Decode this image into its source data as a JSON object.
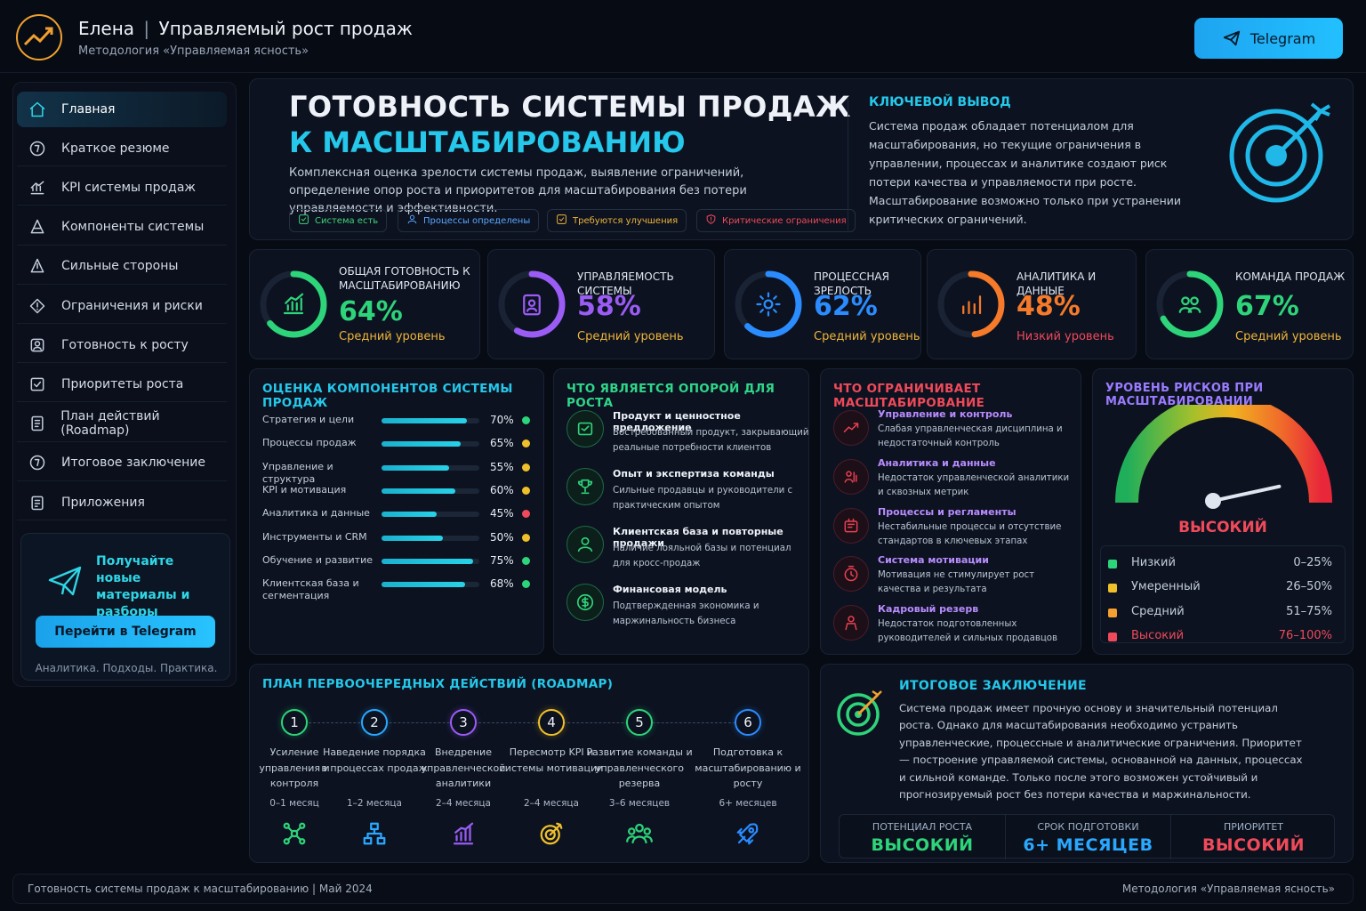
{
  "header": {
    "name": "Елена",
    "separator": "|",
    "title": "Управляемый рост продаж",
    "subtitle": "Методология «Управляемая ясность»",
    "telegram_label": "Telegram"
  },
  "sidebar": {
    "items": [
      {
        "label": "Главная",
        "icon": "home-icon"
      },
      {
        "label": "Краткое резюме",
        "icon": "summary-icon"
      },
      {
        "label": "KPI системы продаж",
        "icon": "kpi-icon"
      },
      {
        "label": "Компоненты системы",
        "icon": "components-icon"
      },
      {
        "label": "Сильные стороны",
        "icon": "strengths-icon"
      },
      {
        "label": "Ограничения и риски",
        "icon": "risks-icon"
      },
      {
        "label": "Готовность к росту",
        "icon": "growth-icon"
      },
      {
        "label": "Приоритеты роста",
        "icon": "priorities-icon"
      },
      {
        "label": "План действий (Roadmap)",
        "icon": "roadmap-icon"
      },
      {
        "label": "Итоговое заключение",
        "icon": "conclusion-icon"
      },
      {
        "label": "Приложения",
        "icon": "appendix-icon"
      }
    ],
    "promo": {
      "text": "Получайте новые материалы и разборы",
      "button": "Перейти в Telegram",
      "footer": "Аналитика. Подходы. Практика."
    }
  },
  "hero": {
    "title_line1": "ГОТОВНОСТЬ СИСТЕМЫ ПРОДАЖ",
    "title_line2": "К МАСШТАБИРОВАНИЮ",
    "description": "Комплексная оценка зрелости системы продаж, выявление ограничений, определение опор роста и приоритетов для масштабирования без потери управляемости и эффективности.",
    "pills": [
      {
        "label": "Система есть",
        "color": "#3fd47a"
      },
      {
        "label": "Процессы определены",
        "color": "#5aa8ff"
      },
      {
        "label": "Требуются улучшения",
        "color": "#f0b63a"
      },
      {
        "label": "Критические ограничения",
        "color": "#f04a5a"
      }
    ],
    "key_heading": "КЛЮЧЕВОЙ ВЫВОД",
    "key_text": "Система продаж обладает потенциалом для масштабирования, но текущие ограничения в управлении, процессах и аналитике создают риск потери качества и управляемости при росте. Масштабирование возможно только при устранении критических ограничений."
  },
  "kpis": [
    {
      "title": "ОБЩАЯ ГОТОВНОСТЬ К МАСШТАБИРОВАНИЮ",
      "value": "64%",
      "percent": 64,
      "level": "Средний уровень",
      "color": "#2ed47a",
      "level_color": "#f0b63a",
      "icon": "bar-chart-icon"
    },
    {
      "title": "УПРАВЛЯЕМОСТЬ СИСТЕМЫ",
      "value": "58%",
      "percent": 58,
      "level": "Средний уровень",
      "color": "#9a5cf5",
      "level_color": "#f0b63a",
      "icon": "clipboard-icon"
    },
    {
      "title": "ПРОЦЕССНАЯ ЗРЕЛОСТЬ",
      "value": "62%",
      "percent": 62,
      "level": "Средний уровень",
      "color": "#2a8cff",
      "level_color": "#f0b63a",
      "icon": "gear-icon"
    },
    {
      "title": "АНАЛИТИКА И ДАННЫЕ",
      "value": "48%",
      "percent": 48,
      "level": "Низкий уровень",
      "color": "#f57a2a",
      "level_color": "#f04a5a",
      "icon": "analytics-icon"
    },
    {
      "title": "КОМАНДА ПРОДАЖ",
      "value": "67%",
      "percent": 67,
      "level": "Средний уровень",
      "color": "#2ed47a",
      "level_color": "#f0b63a",
      "icon": "team-icon"
    }
  ],
  "components": {
    "heading": "ОЦЕНКА КОМПОНЕНТОВ СИСТЕМЫ ПРОДАЖ",
    "rows": [
      {
        "label": "Стратегия и цели",
        "value": "70%",
        "percent": 70,
        "status_color": "#2ed47a"
      },
      {
        "label": "Процессы продаж",
        "value": "65%",
        "percent": 65,
        "status_color": "#f0c02a"
      },
      {
        "label": "Управление и структура",
        "value": "55%",
        "percent": 55,
        "status_color": "#f0c02a"
      },
      {
        "label": "KPI и мотивация",
        "value": "60%",
        "percent": 60,
        "status_color": "#f0c02a"
      },
      {
        "label": "Аналитика и данные",
        "value": "45%",
        "percent": 45,
        "status_color": "#f04a5a"
      },
      {
        "label": "Инструменты и CRM",
        "value": "50%",
        "percent": 50,
        "status_color": "#f0c02a"
      },
      {
        "label": "Обучение и развитие",
        "value": "75%",
        "percent": 75,
        "status_color": "#2ed47a"
      },
      {
        "label": "Клиентская база и сегментация",
        "value": "68%",
        "percent": 68,
        "status_color": "#2ed47a"
      }
    ]
  },
  "supports": {
    "heading": "ЧТО ЯВЛЯЕТСЯ ОПОРОЙ ДЛЯ РОСТА",
    "items": [
      {
        "title": "Продукт и ценностное предложение",
        "text": "Востребованный продукт, закрывающий реальные потребности клиентов",
        "icon": "product-icon"
      },
      {
        "title": "Опыт и экспертиза команды",
        "text": "Сильные продавцы и руководители с практическим опытом",
        "icon": "trophy-icon"
      },
      {
        "title": "Клиентская база и повторные продажи",
        "text": "Наличие лояльной базы и потенциал для кросс-продаж",
        "icon": "user-icon"
      },
      {
        "title": "Финансовая модель",
        "text": "Подтвержденная экономика и маржинальность бизнеса",
        "icon": "dollar-icon"
      }
    ]
  },
  "limits": {
    "heading": "ЧТО ОГРАНИЧИВАЕТ МАСШТАБИРОВАНИЕ",
    "items": [
      {
        "title": "Управление и контроль",
        "text": "Слабая управленческая дисциплина и недостаточный контроль",
        "icon": "trend-icon"
      },
      {
        "title": "Аналитика и данные",
        "text": "Недостаток управленческой аналитики и сквозных метрик",
        "icon": "data-icon"
      },
      {
        "title": "Процессы и регламенты",
        "text": "Нестабильные процессы и отсутствие стандартов в ключевых этапах",
        "icon": "process-icon"
      },
      {
        "title": "Система мотивации",
        "text": "Мотивация не стимулирует рост качества и результата",
        "icon": "timer-icon"
      },
      {
        "title": "Кадровый резерв",
        "text": "Недостаток подготовленных руководителей и сильных продавцов",
        "icon": "person-icon"
      }
    ]
  },
  "risk": {
    "heading": "УРОВЕНЬ РИСКОВ ПРИ МАСШТАБИРОВАНИИ",
    "level": "ВЫСОКИЙ",
    "gauge_value": 0.88,
    "legend": [
      {
        "name": "Низкий",
        "range": "0–25%",
        "color": "#2ed47a"
      },
      {
        "name": "Умеренный",
        "range": "26–50%",
        "color": "#f0c02a"
      },
      {
        "name": "Средний",
        "range": "51–75%",
        "color": "#f5a030"
      },
      {
        "name": "Высокий",
        "range": "76–100%",
        "color": "#f04a5a"
      }
    ]
  },
  "roadmap": {
    "heading": "ПЛАН ПЕРВООЧЕРЕДНЫХ ДЕЙСТВИЙ (ROADMAP)",
    "steps": [
      {
        "num": "1",
        "label": "Усиление управления и контроля",
        "duration": "0–1 месяц",
        "color": "#2ed47a",
        "icon": "network-icon"
      },
      {
        "num": "2",
        "label": "Наведение порядка в процессах продаж",
        "duration": "1–2 месяца",
        "color": "#2aa8ff",
        "icon": "hierarchy-icon"
      },
      {
        "num": "3",
        "label": "Внедрение управленческой аналитики",
        "duration": "2–4 месяца",
        "color": "#9a5cf5",
        "icon": "chart-icon"
      },
      {
        "num": "4",
        "label": "Пересмотр KPI и системы мотивации",
        "duration": "2–4 месяца",
        "color": "#f0c02a",
        "icon": "target-icon"
      },
      {
        "num": "5",
        "label": "Развитие команды и управленческого резерва",
        "duration": "3–6 месяцев",
        "color": "#2ed47a",
        "icon": "group-icon"
      },
      {
        "num": "6",
        "label": "Подготовка к масштабированию и росту",
        "duration": "6+ месяцев",
        "color": "#2a8cff",
        "icon": "rocket-icon"
      }
    ]
  },
  "conclusion": {
    "heading": "ИТОГОВОЕ ЗАКЛЮЧЕНИЕ",
    "text": "Система продаж имеет прочную основу и значительный потенциал роста. Однако для масштабирования необходимо устранить управленческие, процессные и аналитические ограничения. Приоритет — построение управляемой системы, основанной на данных, процессах и сильной команде. Только после этого возможен устойчивый и прогнозируемый рост без потери качества и маржинальности.",
    "stats": [
      {
        "label": "ПОТЕНЦИАЛ РОСТА",
        "value": "ВЫСОКИЙ",
        "color": "#2ed47a"
      },
      {
        "label": "СРОК ПОДГОТОВКИ",
        "value": "6+ МЕСЯЦЕВ",
        "color": "#2aa8ff"
      },
      {
        "label": "ПРИОРИТЕТ",
        "value": "ВЫСОКИЙ",
        "color": "#f04a5a"
      }
    ]
  },
  "footer": {
    "left": "Готовность системы продаж к масштабированию  |  Май 2024",
    "right": "Методология «Управляемая ясность»"
  }
}
